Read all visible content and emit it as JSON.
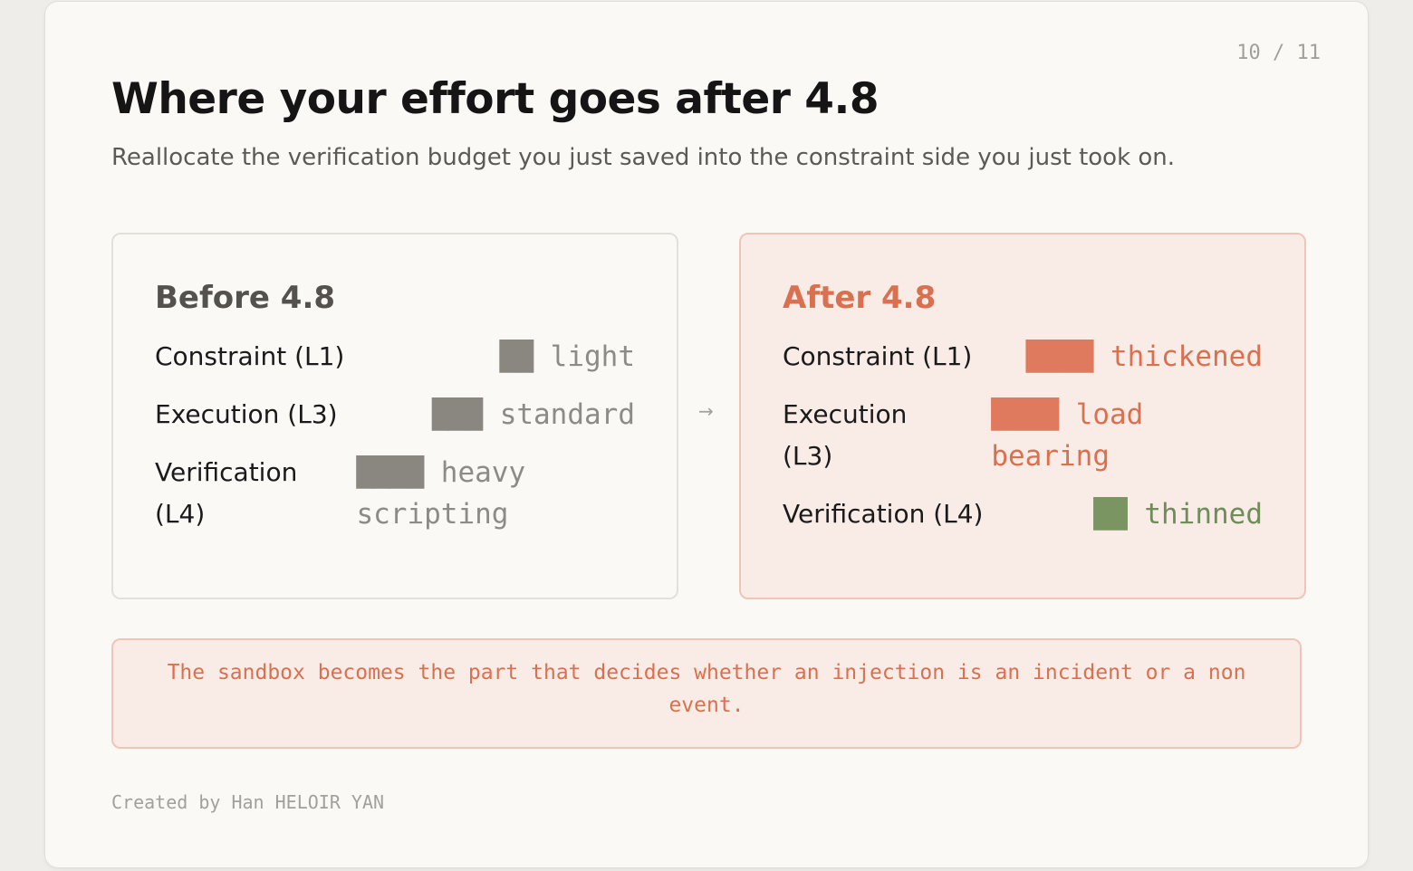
{
  "page_counter": "10 / 11",
  "header": {
    "title": "Where your effort goes after 4.8",
    "subtitle": "Reallocate the verification budget you just saved into the constraint side you just took on."
  },
  "before": {
    "title": "Before 4.8",
    "rows": [
      {
        "label": "Constraint (L1)",
        "bar": "██",
        "value": "light"
      },
      {
        "label": "Execution (L3)",
        "bar": "███",
        "value": "standard"
      },
      {
        "label": "Verification (L4)",
        "bar": "████",
        "value": "heavy scripting"
      }
    ]
  },
  "arrow": "→",
  "after": {
    "title": "After 4.8",
    "rows": [
      {
        "label": "Constraint (L1)",
        "bar": "████",
        "value": "thickened"
      },
      {
        "label": "Execution (L3)",
        "bar": "████",
        "value": "load bearing"
      },
      {
        "label": "Verification (L4)",
        "bar": "██",
        "value": "thinned"
      }
    ]
  },
  "callout": "The sandbox becomes the part that decides whether an injection is an incident or a non event.",
  "footer": "Created by Han HELOIR YAN"
}
